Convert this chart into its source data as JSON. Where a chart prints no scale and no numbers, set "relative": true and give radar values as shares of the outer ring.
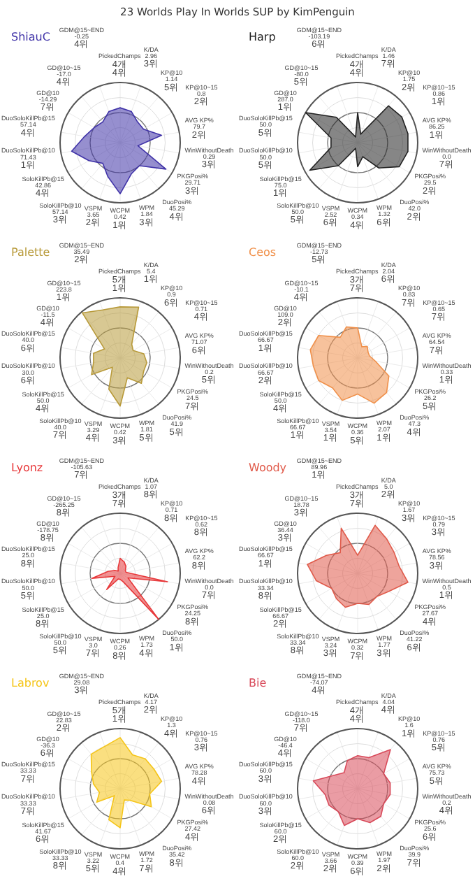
{
  "chart_data": [
    {
      "type": "other",
      "title": "23 Worlds Play In Worlds SUP by KimPenguin"
    },
    {
      "type": "radar",
      "title": "ShiauC",
      "relative": true,
      "grid": true,
      "categories": [
        "PickedChamps\n4개\n4위",
        "K/DA\n2.96\n3위",
        "KP@10\n1.14\n5위",
        "KP@10~15\n0.8\n2위",
        "AVG KP%\n79.7\n2위",
        "WinWithoutDeath\n0.29\n3위",
        "PKGPosi%\n29.71\n3위",
        "DuoPosi%\n45.29\n4위",
        "WPM\n1.84\n3위",
        "WCPM\n0.42\n1위",
        "VSPM\n3.65\n2위",
        "SoloKillPb@10\n57.14\n3위",
        "SoloKillPb@15\n42.86\n4위",
        "DuoSoloKillPb@10\n71.43\n1위",
        "DuoSoloKillPb@15\n57.14\n4위",
        "GD@10\n-14.29\n7위",
        "GD@10~15\n-17.0\n4위",
        "GDM@15~END\n-0.25\n4위"
      ],
      "series": [
        {
          "color": "#4033a8",
          "values": [
            0.58,
            0.55,
            0.45,
            0.45,
            0.7,
            0.3,
            0.88,
            0.5,
            0.55,
            0.85,
            0.6,
            0.45,
            0.6,
            0.82,
            0.6,
            0.5,
            0.45,
            0.55
          ]
        }
      ]
    },
    {
      "type": "radar",
      "title": "Harp",
      "relative": true,
      "grid": true,
      "categories": [
        "PickedChamps\n4개\n4위",
        "K/DA\n1.46\n7위",
        "KP@10\n1.75\n2위",
        "KP@10~15\n0.86\n1위",
        "AVG KP%\n86.25\n1위",
        "WinWithoutDeath\n0.0\n7위",
        "PKGPosi%\n29.5\n2위",
        "DuoPosi%\n42.0\n2위",
        "WPM\n1.32\n6위",
        "WCPM\n0.34\n4위",
        "VSPM\n2.52\n6위",
        "SoloKillPb@10\n50.0\n5위",
        "SoloKillPb@15\n75.0\n1위",
        "DuoSoloKillPb@10\n50.0\n5위",
        "DuoSoloKillPb@15\n50.0\n5위",
        "GD@10\n287.0\n1위",
        "GD@10~15\n-80.0\n5위",
        "GDM@15~END\n-103.19\n6위"
      ],
      "series": [
        {
          "color": "#222222",
          "values": [
            0.5,
            0.15,
            0.8,
            0.85,
            0.85,
            0.85,
            0.8,
            0.55,
            0.25,
            0.4,
            0.1,
            0.5,
            0.92,
            0.45,
            0.45,
            1.0,
            0.55,
            0.1
          ]
        }
      ]
    },
    {
      "type": "radar",
      "title": "Palette",
      "relative": true,
      "grid": true,
      "categories": [
        "PickedChamps\n5개\n1위",
        "K/DA\n5.4\n1위",
        "KP@10\n0.9\n6위",
        "KP@10~15\n0.71\n4위",
        "AVG KP%\n71.07\n6위",
        "WinWithoutDeath\n0.2\n5위",
        "PKGPosi%\n24.5\n7위",
        "DuoPosi%\n41.9\n5위",
        "WPM\n1.81\n5위",
        "WCPM\n0.42\n3위",
        "VSPM\n3.29\n4위",
        "SoloKillPb@10\n40.0\n7위",
        "SoloKillPb@15\n50.0\n4위",
        "DuoSoloKillPb@10\n30.0\n6위",
        "DuoSoloKillPb@15\n40.0\n6위",
        "GD@10\n-11.5\n4위",
        "GD@10~15\n223.8\n1위",
        "GDM@15~END\n35.49\n2위"
      ],
      "series": [
        {
          "color": "#b89a3a",
          "values": [
            0.85,
            0.9,
            0.3,
            0.25,
            0.4,
            0.45,
            0.45,
            0.55,
            0.35,
            0.8,
            0.55,
            0.2,
            0.55,
            0.45,
            0.45,
            0.3,
            0.98,
            0.85
          ]
        }
      ]
    },
    {
      "type": "radar",
      "title": "Ceos",
      "relative": true,
      "grid": true,
      "categories": [
        "PickedChamps\n3개\n7위",
        "K/DA\n2.04\n6위",
        "KP@10\n0.83\n7위",
        "KP@10~15\n0.65\n7위",
        "AVG KP%\n64.54\n7위",
        "WinWithoutDeath\n0.33\n1위",
        "PKGPosi%\n26.2\n5위",
        "DuoPosi%\n47.3\n4위",
        "WPM\n2.07\n1위",
        "WCPM\n0.36\n5위",
        "VSPM\n3.54\n1위",
        "SoloKillPb@10\n66.67\n1위",
        "SoloKillPb@15\n50.0\n4위",
        "DuoSoloKillPb@10\n66.67\n2위",
        "DuoSoloKillPb@15\n66.67\n1위",
        "GD@10\n109.0\n2위",
        "GD@10~15\n-10.1\n4위",
        "GDM@15~END\n-12.73\n5위"
      ],
      "series": [
        {
          "color": "#f0904a",
          "values": [
            0.5,
            0.2,
            0.25,
            0.2,
            0.2,
            0.3,
            0.6,
            0.75,
            0.8,
            0.6,
            0.75,
            0.65,
            0.75,
            0.75,
            0.8,
            0.75,
            0.45,
            0.55
          ]
        }
      ]
    },
    {
      "type": "radar",
      "title": "Lyonz",
      "relative": true,
      "grid": true,
      "categories": [
        "PickedChamps\n3개\n7위",
        "K/DA\n1.07\n8위",
        "KP@10\n0.71\n8위",
        "KP@10~15\n0.62\n8위",
        "AVG KP%\n62.2\n8위",
        "WinWithoutDeath\n0.0\n7위",
        "PKGPosi%\n24.25\n8위",
        "DuoPosi%\n50.0\n1위",
        "WPM\n1.73\n4위",
        "WCPM\n0.26\n8위",
        "VSPM\n3.0\n7위",
        "SoloKillPb@10\n50.0\n5위",
        "SoloKillPb@15\n25.0\n8위",
        "DuoSoloKillPb@10\n50.0\n5위",
        "DuoSoloKillPb@15\n25.0\n8위",
        "GD@10\n-178.75\n8위",
        "GD@10~15\n-265.25\n8위",
        "GDM@15~END\n-105.63\n7위"
      ],
      "series": [
        {
          "color": "#e8383a",
          "values": [
            0.25,
            0.2,
            0.15,
            0.1,
            0.1,
            0.8,
            0.15,
            1.0,
            0.15,
            0.1,
            0.1,
            0.35,
            0.1,
            0.48,
            0.2,
            0.1,
            0.05,
            0.1
          ]
        }
      ]
    },
    {
      "type": "radar",
      "title": "Woody",
      "relative": true,
      "grid": true,
      "categories": [
        "PickedChamps\n3개\n7위",
        "K/DA\n5.0\n2위",
        "KP@10\n1.67\n3위",
        "KP@10~15\n0.79\n3위",
        "AVG KP%\n78.56\n3위",
        "WinWithoutDeath\n0.5\n1위",
        "PKGPosi%\n27.67\n4위",
        "DuoPosi%\n41.22\n6위",
        "WPM\n1.77\n3위",
        "WCPM\n0.32\n7위",
        "VSPM\n3.24\n3위",
        "SoloKillPb@10\n33.34\n8위",
        "SoloKillPb@15\n66.67\n2위",
        "DuoSoloKillPb@10\n33.34\n8위",
        "DuoSoloKillPb@15\n66.67\n1위",
        "GD@10\n36.44\n3위",
        "GD@10~15\n18.78\n3위",
        "GDM@15~END\n89.96\n1위"
      ],
      "series": [
        {
          "color": "#e05a4a",
          "values": [
            0.3,
            0.85,
            0.75,
            0.7,
            0.7,
            0.85,
            0.6,
            0.5,
            0.55,
            0.5,
            0.6,
            0.55,
            0.5,
            0.7,
            0.85,
            0.6,
            0.45,
            0.8
          ]
        }
      ]
    },
    {
      "type": "radar",
      "title": "Labrov",
      "relative": true,
      "grid": true,
      "categories": [
        "PickedChamps\n5개\n1위",
        "K/DA\n4.17\n2위",
        "KP@10\n1.3\n4위",
        "KP@10~15\n0.76\n3위",
        "AVG KP%\n78.28\n4위",
        "WinWithoutDeath\n0.08\n6위",
        "PKGPosi%\n27.42\n4위",
        "DuoPosi%\n35.42\n8위",
        "WPM\n1.72\n7위",
        "WCPM\n0.4\n4위",
        "VSPM\n3.22\n5위",
        "SoloKillPb@10\n33.33\n8위",
        "SoloKillPb@15\n41.67\n6위",
        "DuoSoloKillPb@10\n33.33\n7위",
        "DuoSoloKillPb@15\n33.33\n7위",
        "GD@10\n-36.3\n6위",
        "GD@10~15\n22.83\n2위",
        "GDM@15~END\n29.08\n3위"
      ],
      "series": [
        {
          "color": "#f5c518",
          "values": [
            0.85,
            0.6,
            0.65,
            0.65,
            0.7,
            0.5,
            0.6,
            0.25,
            0.2,
            0.65,
            0.55,
            0.15,
            0.45,
            0.35,
            0.45,
            0.55,
            0.75,
            0.75
          ]
        }
      ]
    },
    {
      "type": "radar",
      "title": "Bie",
      "relative": true,
      "grid": true,
      "categories": [
        "PickedChamps\n4개\n4위",
        "K/DA\n4.04\n4위",
        "KP@10\n1.6\n1위",
        "KP@10~15\n0.76\n5위",
        "AVG KP%\n75.73\n5위",
        "WinWithoutDeath\n0.2\n4위",
        "PKGPosi%\n25.6\n6위",
        "DuoPosi%\n39.9\n7위",
        "WPM\n1.97\n2위",
        "WCPM\n0.39\n6위",
        "VSPM\n3.66\n2위",
        "SoloKillPb@10\n60.0\n2위",
        "SoloKillPb@15\n60.0\n2위",
        "DuoSoloKillPb@10\n60.0\n3위",
        "DuoSoloKillPb@15\n60.0\n3위",
        "GD@10\n-46.4\n4위",
        "GD@10~15\n-118.0\n7위",
        "GDM@15~END\n-74.07\n4위"
      ],
      "series": [
        {
          "color": "#d84a5a",
          "values": [
            0.55,
            0.55,
            0.85,
            0.5,
            0.55,
            0.55,
            0.5,
            0.6,
            0.6,
            0.5,
            0.65,
            0.5,
            0.55,
            0.55,
            0.75,
            0.45,
            0.35,
            0.5
          ]
        }
      ]
    }
  ]
}
